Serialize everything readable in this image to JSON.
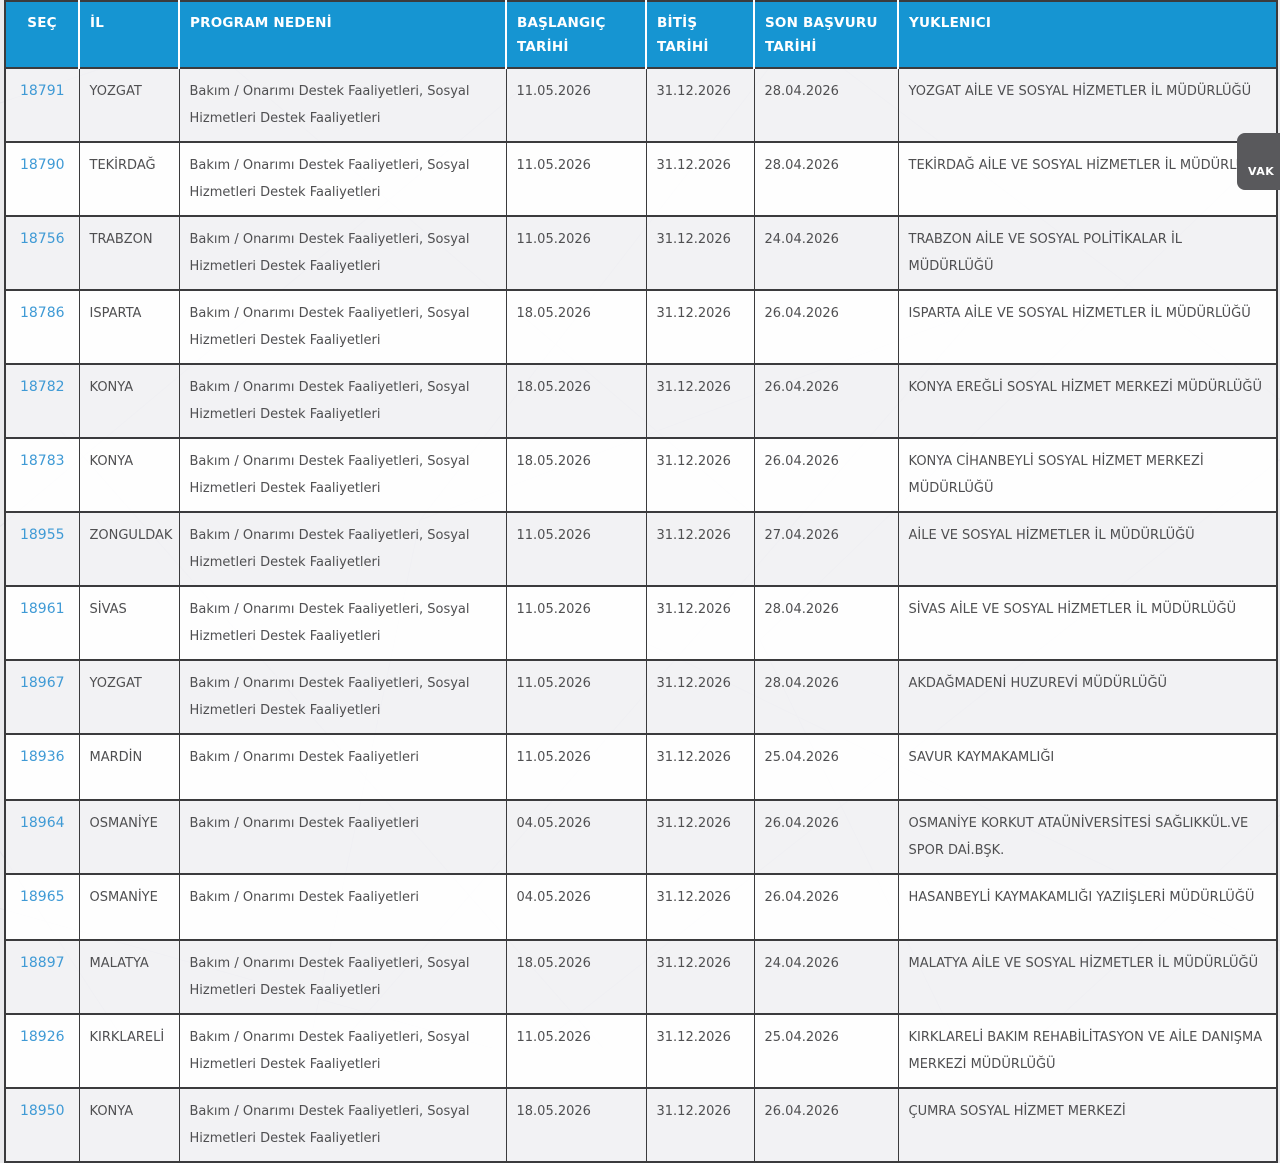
{
  "colors": {
    "header_bg": "#1695d2",
    "header_text": "#ffffff",
    "link_blue": "#3f9ad5",
    "body_text": "#4f4f51",
    "border_dark": "#3b3b3d",
    "row_alt_bg": "#f3f3f5",
    "side_tab_bg": "#59595c"
  },
  "side_tab": {
    "label": "VAK"
  },
  "table": {
    "columns": [
      {
        "key": "sec",
        "label": "SEÇ"
      },
      {
        "key": "il",
        "label": "İL"
      },
      {
        "key": "program",
        "label": "PROGRAM NEDENİ"
      },
      {
        "key": "baslangic",
        "label": "BAŞLANGIÇ TARİHİ"
      },
      {
        "key": "bitis",
        "label": "BİTİŞ TARİHİ"
      },
      {
        "key": "son_basvuru",
        "label": "SON BAŞVURU TARİHİ"
      },
      {
        "key": "yuklenici",
        "label": "YUKLENICI"
      }
    ],
    "rows": [
      {
        "sec": "18791",
        "il": "YOZGAT",
        "program": "Bakım / Onarımı Destek Faaliyetleri, Sosyal Hizmetleri Destek Faaliyetleri",
        "baslangic": "11.05.2026",
        "bitis": "31.12.2026",
        "son_basvuru": "28.04.2026",
        "yuklenici": "YOZGAT AİLE VE SOSYAL HİZMETLER İL MÜDÜRLÜĞÜ"
      },
      {
        "sec": "18790",
        "il": "TEKİRDAĞ",
        "program": "Bakım / Onarımı Destek Faaliyetleri, Sosyal Hizmetleri Destek Faaliyetleri",
        "baslangic": "11.05.2026",
        "bitis": "31.12.2026",
        "son_basvuru": "28.04.2026",
        "yuklenici": "TEKİRDAĞ AİLE VE SOSYAL HİZMETLER İL MÜDÜRLÜĞÜ"
      },
      {
        "sec": "18756",
        "il": "TRABZON",
        "program": "Bakım / Onarımı Destek Faaliyetleri, Sosyal Hizmetleri Destek Faaliyetleri",
        "baslangic": "11.05.2026",
        "bitis": "31.12.2026",
        "son_basvuru": "24.04.2026",
        "yuklenici": "TRABZON AİLE VE SOSYAL POLİTİKALAR İL MÜDÜRLÜĞÜ"
      },
      {
        "sec": "18786",
        "il": "ISPARTA",
        "program": "Bakım / Onarımı Destek Faaliyetleri, Sosyal Hizmetleri Destek Faaliyetleri",
        "baslangic": "18.05.2026",
        "bitis": "31.12.2026",
        "son_basvuru": "26.04.2026",
        "yuklenici": "ISPARTA AİLE VE SOSYAL HİZMETLER İL MÜDÜRLÜĞÜ"
      },
      {
        "sec": "18782",
        "il": "KONYA",
        "program": "Bakım / Onarımı Destek Faaliyetleri, Sosyal Hizmetleri Destek Faaliyetleri",
        "baslangic": "18.05.2026",
        "bitis": "31.12.2026",
        "son_basvuru": "26.04.2026",
        "yuklenici": "KONYA EREĞLİ SOSYAL HİZMET MERKEZİ MÜDÜRLÜĞÜ"
      },
      {
        "sec": "18783",
        "il": "KONYA",
        "program": "Bakım / Onarımı Destek Faaliyetleri, Sosyal Hizmetleri Destek Faaliyetleri",
        "baslangic": "18.05.2026",
        "bitis": "31.12.2026",
        "son_basvuru": "26.04.2026",
        "yuklenici": "KONYA CİHANBEYLİ SOSYAL HİZMET MERKEZİ MÜDÜRLÜĞÜ"
      },
      {
        "sec": "18955",
        "il": "ZONGULDAK",
        "program": "Bakım / Onarımı Destek Faaliyetleri, Sosyal Hizmetleri Destek Faaliyetleri",
        "baslangic": "11.05.2026",
        "bitis": "31.12.2026",
        "son_basvuru": "27.04.2026",
        "yuklenici": "AİLE VE SOSYAL HİZMETLER İL MÜDÜRLÜĞÜ"
      },
      {
        "sec": "18961",
        "il": "SİVAS",
        "program": "Bakım / Onarımı Destek Faaliyetleri, Sosyal Hizmetleri Destek Faaliyetleri",
        "baslangic": "11.05.2026",
        "bitis": "31.12.2026",
        "son_basvuru": "28.04.2026",
        "yuklenici": "SİVAS AİLE VE SOSYAL HİZMETLER İL MÜDÜRLÜĞÜ"
      },
      {
        "sec": "18967",
        "il": "YOZGAT",
        "program": "Bakım / Onarımı Destek Faaliyetleri, Sosyal Hizmetleri Destek Faaliyetleri",
        "baslangic": "11.05.2026",
        "bitis": "31.12.2026",
        "son_basvuru": "28.04.2026",
        "yuklenici": "AKDAĞMADENİ HUZUREVİ MÜDÜRLÜĞÜ"
      },
      {
        "sec": "18936",
        "il": "MARDİN",
        "program": "Bakım / Onarımı Destek Faaliyetleri",
        "baslangic": "11.05.2026",
        "bitis": "31.12.2026",
        "son_basvuru": "25.04.2026",
        "yuklenici": "SAVUR KAYMAKAMLIĞI"
      },
      {
        "sec": "18964",
        "il": "OSMANİYE",
        "program": "Bakım / Onarımı Destek Faaliyetleri",
        "baslangic": "04.05.2026",
        "bitis": "31.12.2026",
        "son_basvuru": "26.04.2026",
        "yuklenici": "OSMANİYE KORKUT ATAÜNİVERSİTESİ SAĞLIKKÜL.VE SPOR DAİ.BŞK."
      },
      {
        "sec": "18965",
        "il": "OSMANİYE",
        "program": "Bakım / Onarımı Destek Faaliyetleri",
        "baslangic": "04.05.2026",
        "bitis": "31.12.2026",
        "son_basvuru": "26.04.2026",
        "yuklenici": "HASANBEYLİ KAYMAKAMLIĞI YAZIİŞLERİ MÜDÜRLÜĞÜ"
      },
      {
        "sec": "18897",
        "il": "MALATYA",
        "program": "Bakım / Onarımı Destek Faaliyetleri, Sosyal Hizmetleri Destek Faaliyetleri",
        "baslangic": "18.05.2026",
        "bitis": "31.12.2026",
        "son_basvuru": "24.04.2026",
        "yuklenici": "MALATYA AİLE VE SOSYAL HİZMETLER İL MÜDÜRLÜĞÜ"
      },
      {
        "sec": "18926",
        "il": "KIRKLARELİ",
        "program": "Bakım / Onarımı Destek Faaliyetleri, Sosyal Hizmetleri Destek Faaliyetleri",
        "baslangic": "11.05.2026",
        "bitis": "31.12.2026",
        "son_basvuru": "25.04.2026",
        "yuklenici": "KIRKLARELİ BAKIM REHABİLİTASYON VE AİLE DANIŞMA MERKEZİ MÜDÜRLÜĞÜ"
      },
      {
        "sec": "18950",
        "il": "KONYA",
        "program": "Bakım / Onarımı Destek Faaliyetleri, Sosyal Hizmetleri Destek Faaliyetleri",
        "baslangic": "18.05.2026",
        "bitis": "31.12.2026",
        "son_basvuru": "26.04.2026",
        "yuklenici": "ÇUMRA SOSYAL HİZMET MERKEZİ"
      }
    ]
  }
}
